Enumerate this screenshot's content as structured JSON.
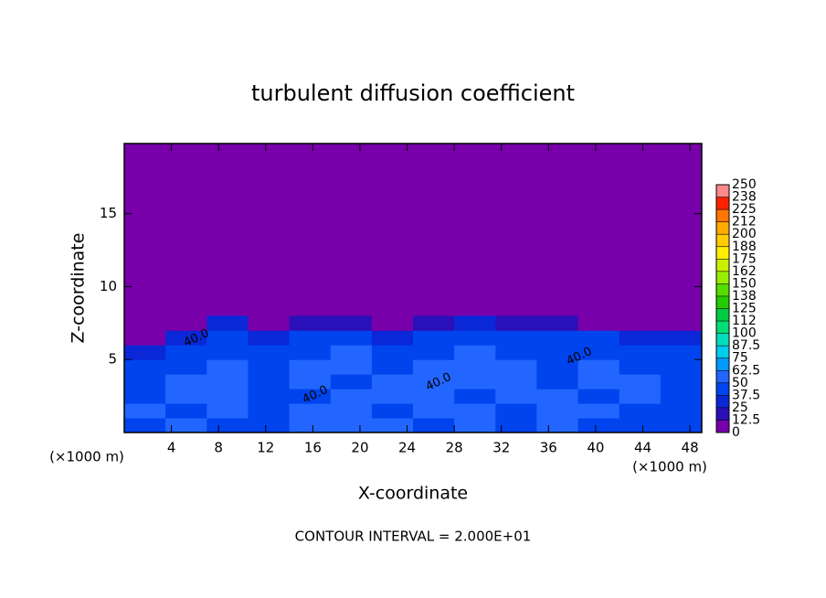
{
  "chart_data": {
    "type": "heatmap",
    "title": "turbulent diffusion coefficient",
    "x_label": "X-coordinate",
    "y_label": "Z-coordinate",
    "x_unit": "(×1000 m)",
    "y_unit": "(×1000 m)",
    "footnote": "CONTOUR INTERVAL = 2.000E+01",
    "xlim": [
      0,
      49
    ],
    "ylim": [
      0,
      19.8
    ],
    "xticks": [
      4,
      8,
      12,
      16,
      20,
      24,
      28,
      32,
      36,
      40,
      44,
      48
    ],
    "yticks": [
      5,
      10,
      15
    ],
    "background_value": 0,
    "field_rows_from_ground": [
      [
        45,
        50,
        48,
        42,
        55,
        52,
        50,
        48,
        52,
        45,
        50,
        48,
        45,
        42
      ],
      [
        50,
        48,
        52,
        45,
        50,
        55,
        48,
        55,
        50,
        48,
        52,
        50,
        48,
        45
      ],
      [
        48,
        52,
        50,
        40,
        48,
        50,
        52,
        60,
        48,
        50,
        50,
        48,
        50,
        46
      ],
      [
        45,
        50,
        52,
        42,
        50,
        48,
        50,
        55,
        50,
        52,
        48,
        50,
        50,
        48
      ],
      [
        40,
        48,
        50,
        40,
        52,
        50,
        48,
        50,
        52,
        50,
        48,
        50,
        48,
        46
      ],
      [
        35,
        42,
        48,
        38,
        48,
        50,
        45,
        48,
        55,
        48,
        45,
        48,
        45,
        44
      ],
      [
        5,
        30,
        45,
        30,
        40,
        42,
        35,
        45,
        48,
        40,
        40,
        42,
        35,
        30
      ],
      [
        0,
        10,
        25,
        5,
        15,
        20,
        5,
        20,
        30,
        20,
        15,
        10,
        5,
        10
      ]
    ],
    "field_row_height": 1,
    "contour_labels": [
      "40.0",
      "40.0",
      "40.0",
      "40.0"
    ],
    "colorbar": {
      "ticks": [
        0,
        12.5,
        25,
        37.5,
        50,
        62.5,
        75,
        87.5,
        100,
        {
          "value": 112.5,
          "label": "112"
        },
        125,
        {
          "value": 137.5,
          "label": "138"
        },
        150,
        {
          "value": 162.5,
          "label": "162"
        },
        175,
        {
          "value": 187.5,
          "label": "188"
        },
        200,
        {
          "value": 212.5,
          "label": "212"
        },
        225,
        {
          "value": 237.5,
          "label": "238"
        },
        250
      ],
      "colors": [
        "#7700aa",
        "#2a10b8",
        "#0a28d8",
        "#0044ee",
        "#2266ff",
        "#0099ff",
        "#00ccee",
        "#00ddbb",
        "#00dd77",
        "#00cc44",
        "#22cc00",
        "#55dd00",
        "#99ee00",
        "#ccee00",
        "#ffee00",
        "#ffcc00",
        "#ffaa00",
        "#ff7700",
        "#ff2200",
        "#ff8888"
      ]
    }
  }
}
